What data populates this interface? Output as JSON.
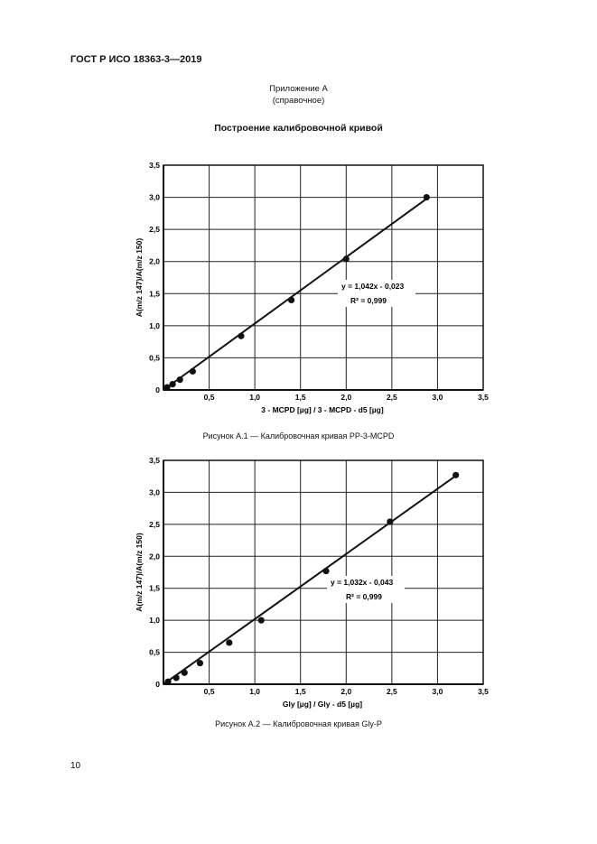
{
  "header": {
    "document_id": "ГОСТ Р ИСО 18363-3—2019",
    "annex_title": "Приложение А",
    "annex_type": "(справочное)",
    "section_title": "Построение калибровочной кривой"
  },
  "page_number": "10",
  "chart_data": [
    {
      "type": "scatter",
      "xlabel": "3 - MCPD [µg] / 3 - MCPD - d5 [µg]",
      "ylabel": "A(m/z 147)/A(m/z 150)",
      "xlim": [
        0,
        3.5
      ],
      "ylim": [
        0,
        3.5
      ],
      "x_ticks": [
        "0",
        "0,5",
        "1,0",
        "1,5",
        "2,0",
        "2,5",
        "3,0",
        "3,5"
      ],
      "y_ticks": [
        "0",
        "0,5",
        "1,0",
        "1,5",
        "2,0",
        "2,5",
        "3,0",
        "3,5"
      ],
      "grid": true,
      "points": [
        {
          "x": 0.04,
          "y": 0.04
        },
        {
          "x": 0.1,
          "y": 0.09
        },
        {
          "x": 0.18,
          "y": 0.16
        },
        {
          "x": 0.32,
          "y": 0.29
        },
        {
          "x": 0.85,
          "y": 0.84
        },
        {
          "x": 1.4,
          "y": 1.4
        },
        {
          "x": 2.0,
          "y": 2.04
        },
        {
          "x": 2.88,
          "y": 3.0
        }
      ],
      "trendline": {
        "x": [
          0.0,
          2.88
        ],
        "y": [
          -0.023,
          2.978
        ]
      },
      "equation": "y = 1,042x - 0,023",
      "r_squared_label": "R² = 0,999",
      "caption": "Рисунок А.1 — Калибровочная кривая PP-3-MCPD"
    },
    {
      "type": "scatter",
      "xlabel": "Gly [µg] / Gly - d5 [µg]",
      "ylabel": "A(m/z 147)/A(m/z 150)",
      "xlim": [
        0,
        3.5
      ],
      "ylim": [
        0,
        3.5
      ],
      "x_ticks": [
        "0",
        "0,5",
        "1,0",
        "1,5",
        "2,0",
        "2,5",
        "3,0",
        "3,5"
      ],
      "y_ticks": [
        "0",
        "0,5",
        "1,0",
        "1,5",
        "2,0",
        "2,5",
        "3,0",
        "3,5"
      ],
      "grid": true,
      "points": [
        {
          "x": 0.05,
          "y": 0.04
        },
        {
          "x": 0.14,
          "y": 0.1
        },
        {
          "x": 0.23,
          "y": 0.18
        },
        {
          "x": 0.4,
          "y": 0.33
        },
        {
          "x": 0.72,
          "y": 0.65
        },
        {
          "x": 1.07,
          "y": 1.0
        },
        {
          "x": 1.78,
          "y": 1.77
        },
        {
          "x": 2.48,
          "y": 2.54
        },
        {
          "x": 3.2,
          "y": 3.27
        }
      ],
      "trendline": {
        "x": [
          0.0,
          3.2
        ],
        "y": [
          -0.043,
          3.259
        ]
      },
      "equation": "y = 1,032x - 0,043",
      "r_squared_label": "R² = 0,999",
      "caption": "Рисунок А.2 — Калибровочная кривая Gly-P"
    }
  ]
}
